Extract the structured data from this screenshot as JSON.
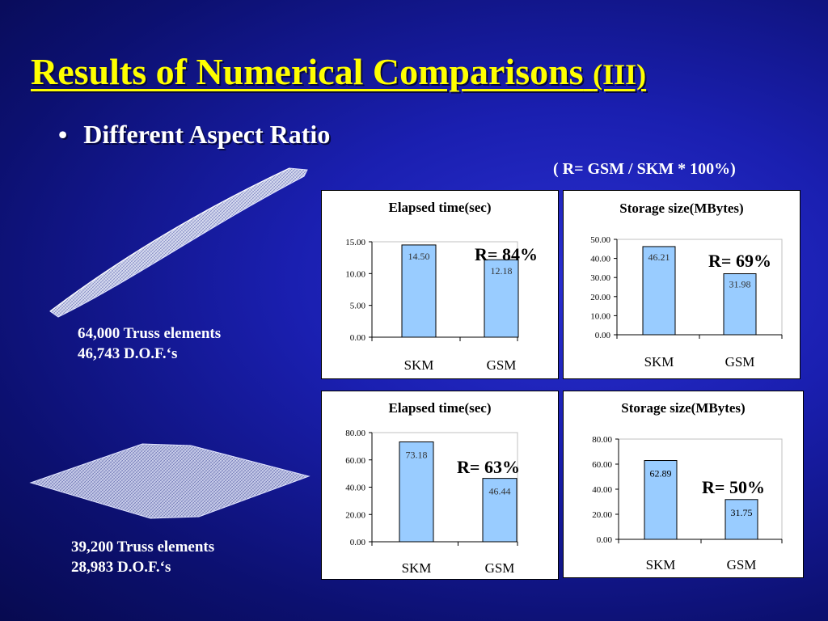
{
  "slide": {
    "title": "Results of Numerical Comparisons",
    "title_suffix": "(III)",
    "bullet_symbol": "•",
    "bullet": "Different Aspect Ratio",
    "formula": "( R= GSM / SKM * 100%)"
  },
  "models": [
    {
      "elements": "64,000 Truss elements",
      "dof": "46,743 D.O.F.‘s"
    },
    {
      "elements": "39,200 Truss elements",
      "dof": "28,983 D.O.F.‘s"
    }
  ],
  "colors": {
    "bar_fill": "#99ccff",
    "bar_stroke": "#000000",
    "text_yellow": "#ffff00"
  },
  "chart_data": [
    {
      "type": "bar",
      "title": "Elapsed time(sec)",
      "categories": [
        "SKM",
        "GSM"
      ],
      "values": [
        14.5,
        12.18
      ],
      "value_labels": [
        "14.50",
        "12.18"
      ],
      "ylim": [
        0,
        15
      ],
      "yticks": [
        "0.00",
        "5.00",
        "10.00",
        "15.00"
      ],
      "annotation": "R= 84%",
      "grid": false
    },
    {
      "type": "bar",
      "title": "Storage size(MBytes)",
      "categories": [
        "SKM",
        "GSM"
      ],
      "values": [
        46.21,
        31.98
      ],
      "value_labels": [
        "46.21",
        "31.98"
      ],
      "ylim": [
        0,
        50
      ],
      "yticks": [
        "0.00",
        "10.00",
        "20.00",
        "30.00",
        "40.00",
        "50.00"
      ],
      "annotation": "R= 69%",
      "grid": false
    },
    {
      "type": "bar",
      "title": "Elapsed time(sec)",
      "categories": [
        "SKM",
        "GSM"
      ],
      "values": [
        73.18,
        46.44
      ],
      "value_labels": [
        "73.18",
        "46.44"
      ],
      "ylim": [
        0,
        80
      ],
      "yticks": [
        "0.00",
        "20.00",
        "40.00",
        "60.00",
        "80.00"
      ],
      "annotation": "R= 63%",
      "grid": false
    },
    {
      "type": "bar",
      "title": "Storage size(MBytes)",
      "categories": [
        "SKM",
        "GSM"
      ],
      "values": [
        62.89,
        31.75
      ],
      "value_labels": [
        "62.89",
        "31.75"
      ],
      "ylim": [
        0,
        80
      ],
      "yticks": [
        "0.00",
        "20.00",
        "40.00",
        "60.00",
        "80.00"
      ],
      "annotation": "R= 50%",
      "grid": false
    }
  ]
}
